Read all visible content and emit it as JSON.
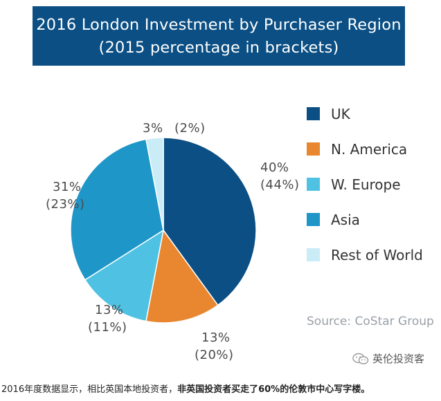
{
  "header": {
    "title_line1": "2016 London Investment by Purchaser Region",
    "title_line2": "(2015 percentage in brackets)"
  },
  "chart_data": {
    "type": "pie",
    "title": "2016 London Investment by Purchaser Region",
    "subtitle": "(2015 percentage in brackets)",
    "unit": "%",
    "slices": [
      {
        "name": "UK",
        "value": 40,
        "prev_value": 44,
        "label": "40%",
        "prev_label": "(44%)",
        "color": "#0b4f84"
      },
      {
        "name": "N. America",
        "value": 13,
        "prev_value": 20,
        "label": "13%",
        "prev_label": "(20%)",
        "color": "#e8872f"
      },
      {
        "name": "W. Europe",
        "value": 13,
        "prev_value": 11,
        "label": "13%",
        "prev_label": "(11%)",
        "color": "#4fc2e3"
      },
      {
        "name": "Asia",
        "value": 31,
        "prev_value": 23,
        "label": "31%",
        "prev_label": "(23%)",
        "color": "#1f96c8"
      },
      {
        "name": "Rest of World",
        "value": 3,
        "prev_value": 2,
        "label": "3%",
        "prev_label": "(2%)",
        "color": "#c9ecf7"
      }
    ],
    "legend_placement": "right",
    "source": "Source: CoStar Group"
  },
  "watermark": {
    "icon": "wechat-icon",
    "text": "英伦投资客"
  },
  "caption": {
    "normal": "2016年度数据显示，相比英国本地投资者，",
    "bold": "非英国投资者买走了60%的伦敦市中心写字楼。"
  }
}
